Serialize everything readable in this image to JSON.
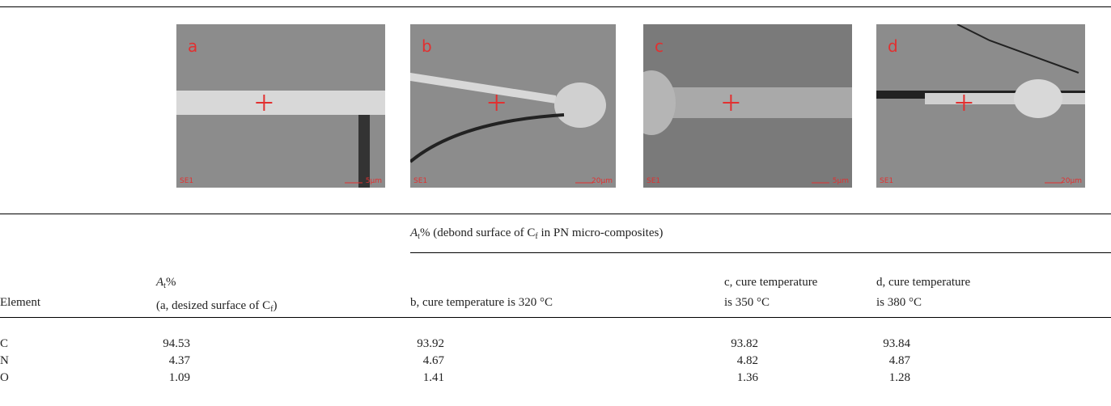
{
  "images": [
    {
      "label": "a",
      "footer": "SE1",
      "scale": "5μm"
    },
    {
      "label": "b",
      "footer": "SE1",
      "scale": "20μm"
    },
    {
      "label": "c",
      "footer": "SE1",
      "scale": "5μm"
    },
    {
      "label": "d",
      "footer": "SE1",
      "scale": "20μm"
    }
  ],
  "table": {
    "group_header": [
      "A",
      "t",
      "% (debond surface of C",
      "f",
      " in PN micro-composites)"
    ],
    "headers": [
      [
        "Element"
      ],
      [
        "A",
        "t",
        "%",
        "(a, desized surface of C",
        "f",
        ")"
      ],
      [
        "b, cure temperature is 320 °C"
      ],
      [
        "c, cure temperature",
        "is 350 °C"
      ],
      [
        "d, cure temperature",
        "is 380 °C"
      ]
    ],
    "rows": [
      [
        "C",
        94.53,
        93.92,
        93.82,
        93.84
      ],
      [
        "N",
        4.37,
        4.67,
        4.82,
        4.87
      ],
      [
        "O",
        1.09,
        1.41,
        1.36,
        1.28
      ]
    ]
  }
}
